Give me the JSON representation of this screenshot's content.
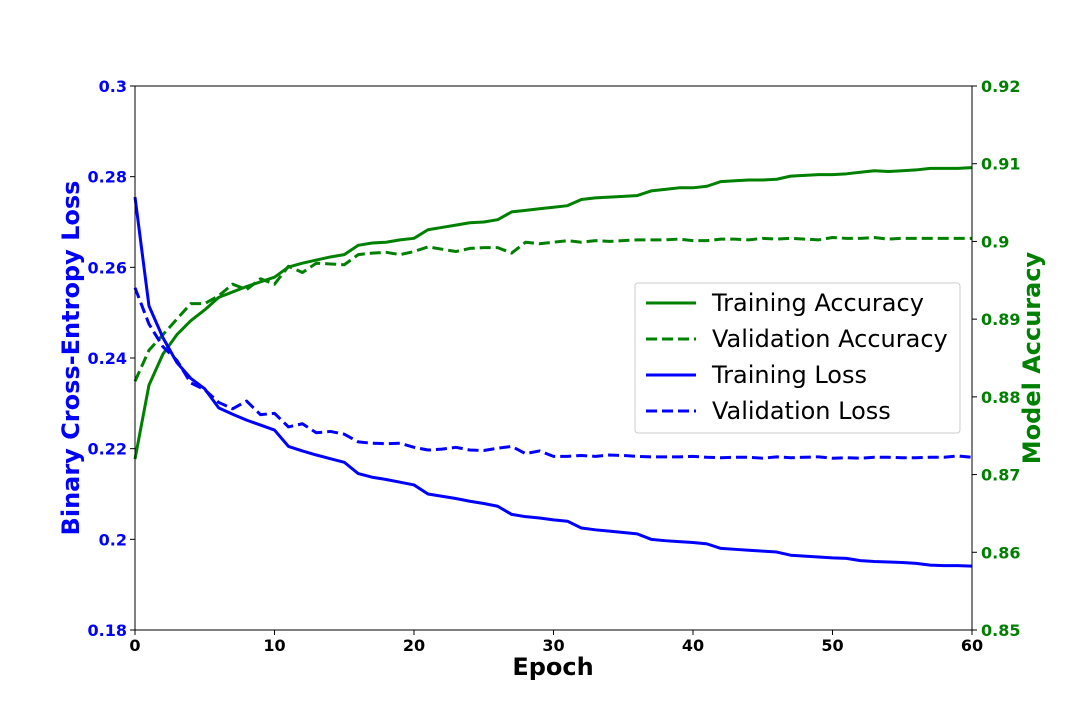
{
  "chart_data": {
    "type": "line",
    "xlabel": "Epoch",
    "ylabel_left": "Binary Cross-Entropy Loss",
    "ylabel_right": "Model Accuracy",
    "xlim": [
      0,
      60
    ],
    "ylim_left": [
      0.18,
      0.3
    ],
    "ylim_right": [
      0.85,
      0.92
    ],
    "x_ticks": [
      "0",
      "10",
      "20",
      "30",
      "40",
      "50",
      "60"
    ],
    "y_left_ticks": [
      "0.18",
      "0.2",
      "0.22",
      "0.24",
      "0.26",
      "0.28",
      "0.3"
    ],
    "y_right_ticks": [
      "0.85",
      "0.86",
      "0.87",
      "0.88",
      "0.89",
      "0.9",
      "0.91",
      "0.92"
    ],
    "legend_position": "center-right",
    "grid": false,
    "colors": {
      "loss": "#0000ff",
      "accuracy": "#008000"
    },
    "series": [
      {
        "name": "Training Accuracy",
        "axis": "right",
        "style": "solid",
        "color": "#008000",
        "x": [
          0,
          1,
          2,
          3,
          4,
          5,
          6,
          7,
          8,
          9,
          10,
          11,
          12,
          13,
          14,
          15,
          16,
          17,
          18,
          19,
          20,
          21,
          22,
          23,
          24,
          25,
          26,
          27,
          28,
          29,
          30,
          31,
          32,
          33,
          34,
          35,
          36,
          37,
          38,
          39,
          40,
          41,
          42,
          43,
          44,
          45,
          46,
          47,
          48,
          49,
          50,
          51,
          52,
          53,
          54,
          55,
          56,
          57,
          58,
          59,
          60
        ],
        "y": [
          0.872,
          0.8815,
          0.8855,
          0.888,
          0.8898,
          0.8912,
          0.8928,
          0.8935,
          0.8942,
          0.8948,
          0.8954,
          0.8967,
          0.8972,
          0.8976,
          0.898,
          0.8983,
          0.8995,
          0.8998,
          0.8999,
          0.9002,
          0.9004,
          0.9015,
          0.9018,
          0.9021,
          0.9024,
          0.9025,
          0.9028,
          0.9038,
          0.904,
          0.9042,
          0.9044,
          0.9046,
          0.9054,
          0.9056,
          0.9057,
          0.9058,
          0.9059,
          0.9065,
          0.9067,
          0.9069,
          0.9069,
          0.9071,
          0.9077,
          0.9078,
          0.9079,
          0.9079,
          0.908,
          0.9084,
          0.9085,
          0.9086,
          0.9086,
          0.9087,
          0.9089,
          0.9091,
          0.909,
          0.9091,
          0.9092,
          0.9094,
          0.9094,
          0.9094,
          0.9095
        ]
      },
      {
        "name": "Validation Accuracy",
        "axis": "right",
        "style": "dashed",
        "color": "#008000",
        "x": [
          0,
          1,
          2,
          3,
          4,
          5,
          6,
          7,
          8,
          9,
          10,
          11,
          12,
          13,
          14,
          15,
          16,
          17,
          18,
          19,
          20,
          21,
          22,
          23,
          24,
          25,
          26,
          27,
          28,
          29,
          30,
          31,
          32,
          33,
          34,
          35,
          36,
          37,
          38,
          39,
          40,
          41,
          42,
          43,
          44,
          45,
          46,
          47,
          48,
          49,
          50,
          51,
          52,
          53,
          54,
          55,
          56,
          57,
          58,
          59,
          60
        ],
        "y": [
          0.882,
          0.886,
          0.888,
          0.89,
          0.892,
          0.892,
          0.893,
          0.8945,
          0.8938,
          0.8952,
          0.8945,
          0.8968,
          0.896,
          0.8972,
          0.8971,
          0.897,
          0.8983,
          0.8985,
          0.8986,
          0.8983,
          0.8987,
          0.8993,
          0.899,
          0.8987,
          0.8991,
          0.8992,
          0.8992,
          0.8985,
          0.8999,
          0.8997,
          0.8999,
          0.9001,
          0.8999,
          0.9001,
          0.9,
          0.9001,
          0.9002,
          0.9002,
          0.9002,
          0.9003,
          0.9001,
          0.9001,
          0.9003,
          0.9003,
          0.9002,
          0.9004,
          0.9003,
          0.9004,
          0.9003,
          0.9002,
          0.9005,
          0.9004,
          0.9004,
          0.9005,
          0.9003,
          0.9004,
          0.9004,
          0.9004,
          0.9004,
          0.9004,
          0.9004
        ]
      },
      {
        "name": "Training Loss",
        "axis": "left",
        "style": "solid",
        "color": "#0000ff",
        "x": [
          0,
          1,
          2,
          3,
          4,
          5,
          6,
          7,
          8,
          9,
          10,
          11,
          12,
          13,
          14,
          15,
          16,
          17,
          18,
          19,
          20,
          21,
          22,
          23,
          24,
          25,
          26,
          27,
          28,
          29,
          30,
          31,
          32,
          33,
          34,
          35,
          36,
          37,
          38,
          39,
          40,
          41,
          42,
          43,
          44,
          45,
          46,
          47,
          48,
          49,
          50,
          51,
          52,
          53,
          54,
          55,
          56,
          57,
          58,
          59,
          60
        ],
        "y": [
          0.2755,
          0.2515,
          0.2445,
          0.239,
          0.2355,
          0.2332,
          0.229,
          0.2276,
          0.2263,
          0.2252,
          0.2241,
          0.2205,
          0.2195,
          0.2186,
          0.2178,
          0.217,
          0.2145,
          0.2137,
          0.2132,
          0.2126,
          0.212,
          0.21,
          0.2095,
          0.209,
          0.2084,
          0.2079,
          0.2073,
          0.2055,
          0.205,
          0.2047,
          0.2043,
          0.204,
          0.2025,
          0.2021,
          0.2018,
          0.2015,
          0.2012,
          0.2,
          0.1997,
          0.1995,
          0.1993,
          0.199,
          0.198,
          0.1978,
          0.1976,
          0.1974,
          0.1972,
          0.1965,
          0.1963,
          0.1961,
          0.1959,
          0.1958,
          0.1953,
          0.1951,
          0.195,
          0.1949,
          0.1947,
          0.1943,
          0.1942,
          0.1942,
          0.1941
        ]
      },
      {
        "name": "Validation Loss",
        "axis": "left",
        "style": "dashed",
        "color": "#0000ff",
        "x": [
          0,
          1,
          2,
          3,
          4,
          5,
          6,
          7,
          8,
          9,
          10,
          11,
          12,
          13,
          14,
          15,
          16,
          17,
          18,
          19,
          20,
          21,
          22,
          23,
          24,
          25,
          26,
          27,
          28,
          29,
          30,
          31,
          32,
          33,
          34,
          35,
          36,
          37,
          38,
          39,
          40,
          41,
          42,
          43,
          44,
          45,
          46,
          47,
          48,
          49,
          50,
          51,
          52,
          53,
          54,
          55,
          56,
          57,
          58,
          59,
          60
        ],
        "y": [
          0.2555,
          0.2475,
          0.2425,
          0.2395,
          0.2345,
          0.233,
          0.2302,
          0.2288,
          0.2305,
          0.2275,
          0.2278,
          0.2248,
          0.2255,
          0.2235,
          0.2238,
          0.2232,
          0.2215,
          0.2212,
          0.2211,
          0.2212,
          0.2203,
          0.2197,
          0.2199,
          0.2203,
          0.2197,
          0.2196,
          0.2201,
          0.2205,
          0.2189,
          0.2195,
          0.2183,
          0.2183,
          0.2185,
          0.2183,
          0.2186,
          0.2185,
          0.2183,
          0.2182,
          0.2182,
          0.2182,
          0.2183,
          0.2181,
          0.218,
          0.2181,
          0.2181,
          0.2179,
          0.2182,
          0.218,
          0.2181,
          0.2182,
          0.2179,
          0.218,
          0.2179,
          0.2181,
          0.2181,
          0.218,
          0.218,
          0.2181,
          0.2181,
          0.2184,
          0.2181
        ]
      }
    ]
  }
}
